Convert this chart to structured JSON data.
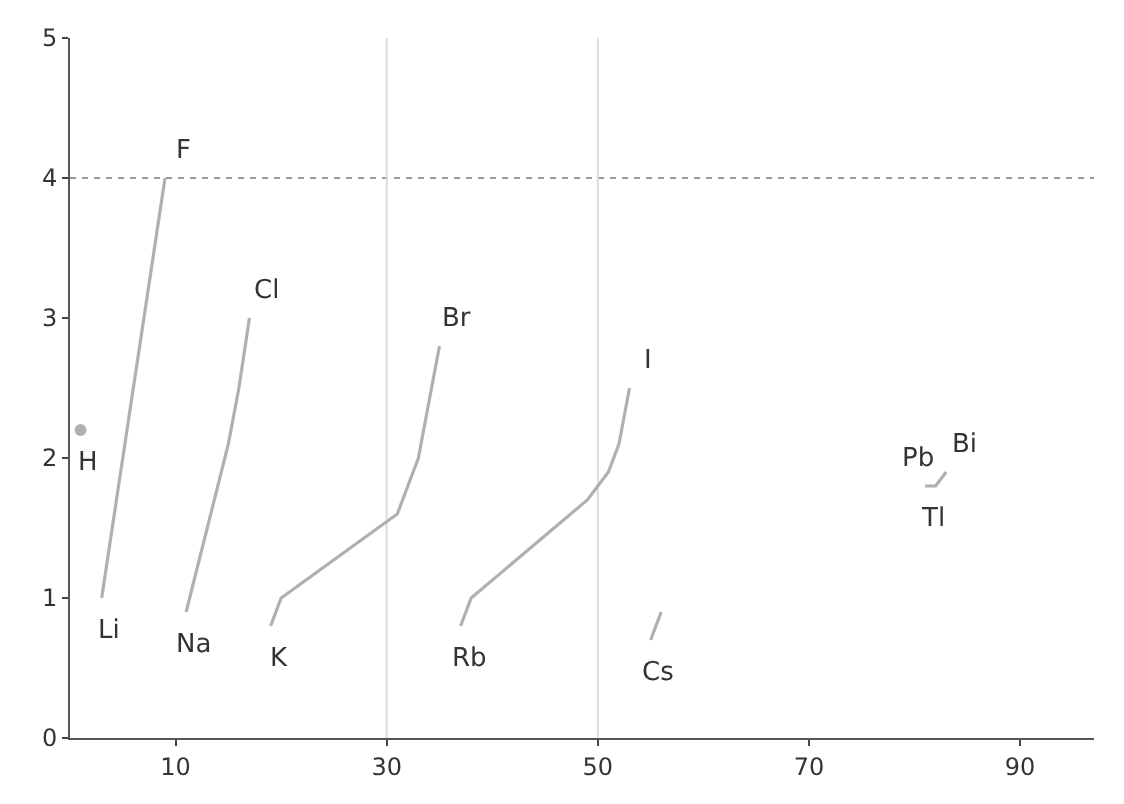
{
  "chart_data": {
    "type": "line",
    "xlim": [
      0,
      97
    ],
    "ylim": [
      0,
      5
    ],
    "xticks": [
      10,
      30,
      50,
      70,
      90
    ],
    "yticks": [
      0,
      1,
      2,
      3,
      4,
      5
    ],
    "grid": false,
    "line_style": "solid",
    "series": [
      {
        "color": "#b0b0b0",
        "x": [
          3,
          4,
          5,
          6,
          7,
          8,
          9
        ],
        "values": [
          1.0,
          1.5,
          2.0,
          2.5,
          3.0,
          3.5,
          4.0
        ]
      },
      {
        "color": "#b0b0b0",
        "x": [
          11,
          12,
          13,
          14,
          15,
          16,
          17
        ],
        "values": [
          0.9,
          1.2,
          1.5,
          1.8,
          2.1,
          2.5,
          3.0
        ]
      },
      {
        "color": "#b0b0b0",
        "x": [
          19,
          20,
          31,
          32,
          33,
          34,
          35
        ],
        "values": [
          0.8,
          1.0,
          1.6,
          1.8,
          2.0,
          2.4,
          2.8
        ]
      },
      {
        "color": "#b0b0b0",
        "x": [
          37,
          38,
          49,
          50,
          51,
          52,
          53
        ],
        "values": [
          0.8,
          1.0,
          1.7,
          1.8,
          1.9,
          2.1,
          2.5
        ]
      },
      {
        "color": "#b0b0b0",
        "x": [
          55,
          56
        ],
        "values": [
          0.7,
          0.9
        ]
      },
      {
        "color": "#b0b0b0",
        "x": [
          81,
          82,
          83
        ],
        "values": [
          1.8,
          1.8,
          1.9
        ]
      },
      {
        "color": "#b0b0b0",
        "type": "scatter",
        "x": [
          1
        ],
        "values": [
          2.2
        ]
      }
    ],
    "ref_lines": [
      {
        "axis": "y",
        "value": 4,
        "color": "#999999",
        "line_style": "dotted"
      },
      {
        "axis": "x",
        "value": 30,
        "color": "#dddddd",
        "line_style": "solid"
      },
      {
        "axis": "x",
        "value": 50,
        "color": "#dddddd",
        "line_style": "solid"
      }
    ],
    "annotations": [
      {
        "text": "H",
        "x": 1,
        "y": 2.2
      },
      {
        "text": "Li",
        "x": 3,
        "y": 1.0
      },
      {
        "text": "F",
        "x": 9,
        "y": 4.0
      },
      {
        "text": "Na",
        "x": 11,
        "y": 0.9
      },
      {
        "text": "Cl",
        "x": 17,
        "y": 3.0
      },
      {
        "text": "K",
        "x": 19,
        "y": 0.8
      },
      {
        "text": "Br",
        "x": 35,
        "y": 2.8
      },
      {
        "text": "Rb",
        "x": 37,
        "y": 0.8
      },
      {
        "text": "I",
        "x": 53,
        "y": 2.5
      },
      {
        "text": "Cs",
        "x": 55,
        "y": 0.7
      },
      {
        "text": "Tl",
        "x": 81,
        "y": 1.8
      },
      {
        "text": "Pb",
        "x": 82,
        "y": 1.8
      },
      {
        "text": "Bi",
        "x": 83,
        "y": 1.9
      }
    ]
  }
}
